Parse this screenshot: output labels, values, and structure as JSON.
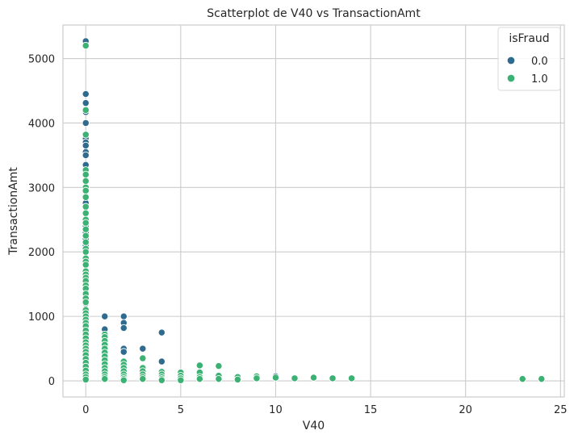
{
  "chart_data": {
    "type": "scatter",
    "title": "Scatterplot de V40 vs TransactionAmt",
    "xlabel": "V40",
    "ylabel": "TransactionAmt",
    "xlim": [
      -1.2,
      25.2
    ],
    "ylim": [
      -250,
      5520
    ],
    "xticks": [
      0,
      5,
      10,
      15,
      20,
      25
    ],
    "yticks": [
      0,
      1000,
      2000,
      3000,
      4000,
      5000
    ],
    "grid": true,
    "legend": {
      "title": "isFraud",
      "placement": "top-right"
    },
    "series": [
      {
        "name": "0.0",
        "color": "#2e6b8e",
        "points": [
          [
            0,
            5270
          ],
          [
            0,
            4450
          ],
          [
            0,
            4310
          ],
          [
            0,
            4170
          ],
          [
            0,
            4000
          ],
          [
            0,
            3760
          ],
          [
            0,
            3700
          ],
          [
            0,
            3650
          ],
          [
            0,
            3550
          ],
          [
            0,
            3500
          ],
          [
            0,
            3350
          ],
          [
            0,
            3200
          ],
          [
            0,
            3100
          ],
          [
            0,
            2950
          ],
          [
            0,
            2850
          ],
          [
            0,
            2760
          ],
          [
            0,
            2700
          ],
          [
            0,
            2600
          ],
          [
            0,
            2500
          ],
          [
            0,
            2400
          ],
          [
            0,
            2300
          ],
          [
            0,
            2200
          ],
          [
            0,
            2100
          ],
          [
            0,
            2000
          ],
          [
            0,
            1900
          ],
          [
            0,
            1800
          ],
          [
            0,
            1700
          ],
          [
            0,
            1600
          ],
          [
            0,
            1500
          ],
          [
            0,
            1400
          ],
          [
            0,
            1300
          ],
          [
            0,
            1200
          ],
          [
            0,
            1100
          ],
          [
            0,
            1000
          ],
          [
            0,
            900
          ],
          [
            0,
            800
          ],
          [
            0,
            700
          ],
          [
            0,
            600
          ],
          [
            0,
            500
          ],
          [
            0,
            400
          ],
          [
            0,
            300
          ],
          [
            0,
            200
          ],
          [
            0,
            100
          ],
          [
            0,
            50
          ],
          [
            1,
            1000
          ],
          [
            1,
            800
          ],
          [
            1,
            650
          ],
          [
            1,
            600
          ],
          [
            1,
            500
          ],
          [
            1,
            350
          ],
          [
            1,
            200
          ],
          [
            1,
            100
          ],
          [
            2,
            1000
          ],
          [
            2,
            900
          ],
          [
            2,
            820
          ],
          [
            2,
            500
          ],
          [
            2,
            450
          ],
          [
            2,
            300
          ],
          [
            2,
            150
          ],
          [
            2,
            60
          ],
          [
            3,
            500
          ],
          [
            3,
            200
          ],
          [
            3,
            100
          ],
          [
            4,
            750
          ],
          [
            4,
            300
          ],
          [
            4,
            150
          ],
          [
            4,
            100
          ],
          [
            4,
            50
          ],
          [
            5,
            100
          ],
          [
            5,
            50
          ],
          [
            6,
            100
          ],
          [
            6,
            50
          ],
          [
            7,
            50
          ],
          [
            8,
            60
          ],
          [
            9,
            60
          ],
          [
            10,
            70
          ]
        ]
      },
      {
        "name": "1.0",
        "color": "#3bb273",
        "points": [
          [
            0,
            5200
          ],
          [
            0,
            4200
          ],
          [
            0,
            3820
          ],
          [
            0,
            3270
          ],
          [
            0,
            3200
          ],
          [
            0,
            3100
          ],
          [
            0,
            3000
          ],
          [
            0,
            2950
          ],
          [
            0,
            2850
          ],
          [
            0,
            2700
          ],
          [
            0,
            2600
          ],
          [
            0,
            2500
          ],
          [
            0,
            2450
          ],
          [
            0,
            2350
          ],
          [
            0,
            2250
          ],
          [
            0,
            2150
          ],
          [
            0,
            2050
          ],
          [
            0,
            2000
          ],
          [
            0,
            1900
          ],
          [
            0,
            1850
          ],
          [
            0,
            1800
          ],
          [
            0,
            1700
          ],
          [
            0,
            1650
          ],
          [
            0,
            1600
          ],
          [
            0,
            1550
          ],
          [
            0,
            1480
          ],
          [
            0,
            1430
          ],
          [
            0,
            1350
          ],
          [
            0,
            1280
          ],
          [
            0,
            1220
          ],
          [
            0,
            1100
          ],
          [
            0,
            1050
          ],
          [
            0,
            1000
          ],
          [
            0,
            950
          ],
          [
            0,
            900
          ],
          [
            0,
            850
          ],
          [
            0,
            780
          ],
          [
            0,
            720
          ],
          [
            0,
            660
          ],
          [
            0,
            600
          ],
          [
            0,
            550
          ],
          [
            0,
            500
          ],
          [
            0,
            450
          ],
          [
            0,
            400
          ],
          [
            0,
            340
          ],
          [
            0,
            280
          ],
          [
            0,
            220
          ],
          [
            0,
            160
          ],
          [
            0,
            100
          ],
          [
            0,
            60
          ],
          [
            0,
            20
          ],
          [
            1,
            720
          ],
          [
            1,
            680
          ],
          [
            1,
            620
          ],
          [
            1,
            560
          ],
          [
            1,
            500
          ],
          [
            1,
            440
          ],
          [
            1,
            380
          ],
          [
            1,
            320
          ],
          [
            1,
            260
          ],
          [
            1,
            200
          ],
          [
            1,
            150
          ],
          [
            1,
            100
          ],
          [
            1,
            60
          ],
          [
            1,
            30
          ],
          [
            2,
            300
          ],
          [
            2,
            250
          ],
          [
            2,
            200
          ],
          [
            2,
            150
          ],
          [
            2,
            100
          ],
          [
            2,
            60
          ],
          [
            2,
            30
          ],
          [
            2,
            10
          ],
          [
            3,
            350
          ],
          [
            3,
            200
          ],
          [
            3,
            150
          ],
          [
            3,
            100
          ],
          [
            3,
            60
          ],
          [
            3,
            30
          ],
          [
            4,
            140
          ],
          [
            4,
            100
          ],
          [
            4,
            60
          ],
          [
            4,
            30
          ],
          [
            4,
            10
          ],
          [
            5,
            130
          ],
          [
            5,
            80
          ],
          [
            5,
            40
          ],
          [
            5,
            10
          ],
          [
            6,
            240
          ],
          [
            6,
            130
          ],
          [
            6,
            60
          ],
          [
            6,
            30
          ],
          [
            7,
            230
          ],
          [
            7,
            80
          ],
          [
            7,
            30
          ],
          [
            8,
            60
          ],
          [
            8,
            20
          ],
          [
            9,
            70
          ],
          [
            9,
            40
          ],
          [
            10,
            50
          ],
          [
            11,
            40
          ],
          [
            12,
            50
          ],
          [
            13,
            40
          ],
          [
            14,
            40
          ],
          [
            23,
            30
          ],
          [
            24,
            30
          ]
        ]
      }
    ]
  }
}
